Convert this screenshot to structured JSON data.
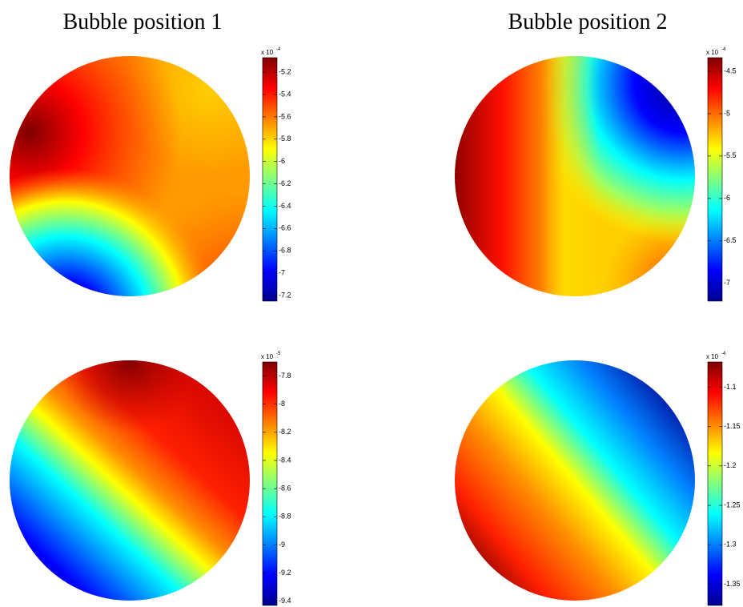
{
  "chart_data": [
    {
      "type": "heatmap",
      "title": "Bubble position 1",
      "scale_base": "x 10",
      "scale_exponent": "-4",
      "clim": [
        -7.25,
        -5.07
      ],
      "cticks": [
        -7.2,
        -7,
        -6.8,
        -6.6,
        -6.4,
        -6.2,
        -6,
        -5.8,
        -5.6,
        -5.4,
        -5.2
      ]
    },
    {
      "type": "heatmap",
      "title": "Bubble position 2",
      "scale_base": "x 10",
      "scale_exponent": "-4",
      "clim": [
        -7.21,
        -4.34
      ],
      "cticks": [
        -7,
        -6.5,
        -6,
        -5.5,
        -5,
        -4.5
      ]
    },
    {
      "type": "heatmap",
      "scale_base": "x 10",
      "scale_exponent": "-5",
      "clim": [
        -9.43,
        -7.7
      ],
      "cticks": [
        -9.4,
        -9.2,
        -9,
        -8.8,
        -8.6,
        -8.4,
        -8.2,
        -8,
        -7.8
      ]
    },
    {
      "type": "heatmap",
      "scale_base": "x 10",
      "scale_exponent": "-4",
      "clim": [
        -1.377,
        -1.068
      ],
      "cticks": [
        -1.35,
        -1.3,
        -1.25,
        -1.2,
        -1.15,
        -1.1
      ]
    }
  ]
}
